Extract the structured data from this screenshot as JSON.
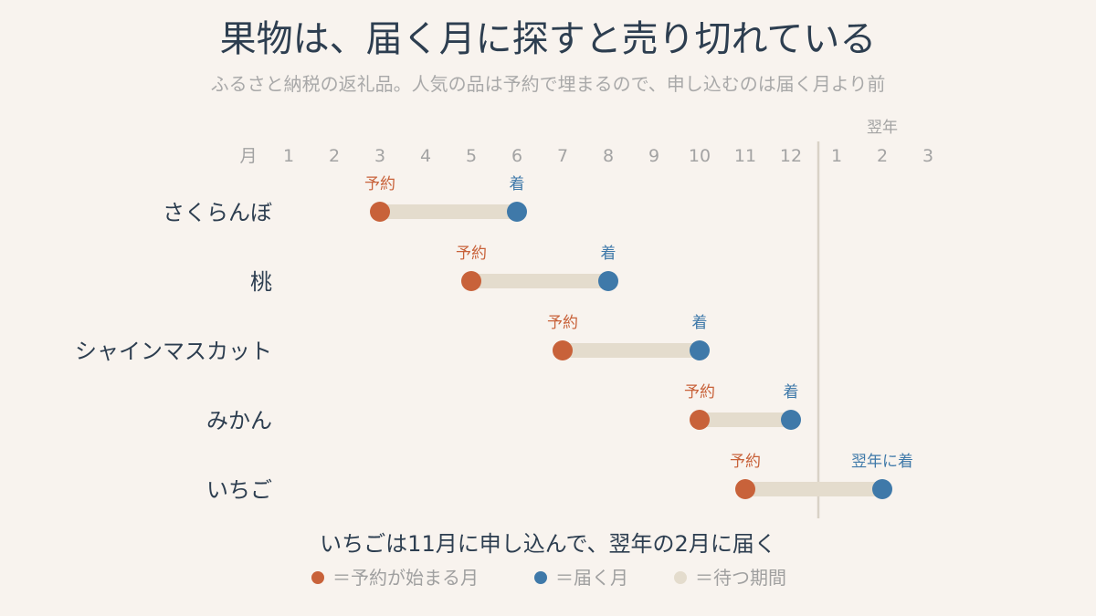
{
  "title": "果物は、届く月に探すと売り切れている",
  "subtitle": "ふるさと納税の返礼品。人気の品は予約で埋まるので、申し込むのは届く月より前",
  "chart_data": {
    "type": "dumbbell",
    "axis_label": "月",
    "next_year_label": "翌年",
    "months": [
      "1",
      "2",
      "3",
      "4",
      "5",
      "6",
      "7",
      "8",
      "9",
      "10",
      "11",
      "12",
      "1",
      "2",
      "3"
    ],
    "xlim": [
      1,
      15
    ],
    "year_divider_at": 12.6,
    "colors": {
      "start": "#c8623a",
      "end": "#3f79a9",
      "wait": "#e4dccd"
    },
    "rows": [
      {
        "name": "さくらんぼ",
        "start": 3,
        "end": 6,
        "start_label": "予約",
        "end_label": "着"
      },
      {
        "name": "桃",
        "start": 5,
        "end": 8,
        "start_label": "予約",
        "end_label": "着"
      },
      {
        "name": "シャインマスカット",
        "start": 7,
        "end": 10,
        "start_label": "予約",
        "end_label": "着"
      },
      {
        "name": "みかん",
        "start": 10,
        "end": 12,
        "start_label": "予約",
        "end_label": "着"
      },
      {
        "name": "いちご",
        "start": 11,
        "end": 14,
        "start_label": "予約",
        "end_label": "翌年に着"
      }
    ]
  },
  "note": "いちごは11月に申し込んで、翌年の2月に届く",
  "legend": [
    {
      "key": "start",
      "label": "＝予約が始まる月"
    },
    {
      "key": "end",
      "label": "＝届く月"
    },
    {
      "key": "wait",
      "label": "＝待つ期間"
    }
  ]
}
